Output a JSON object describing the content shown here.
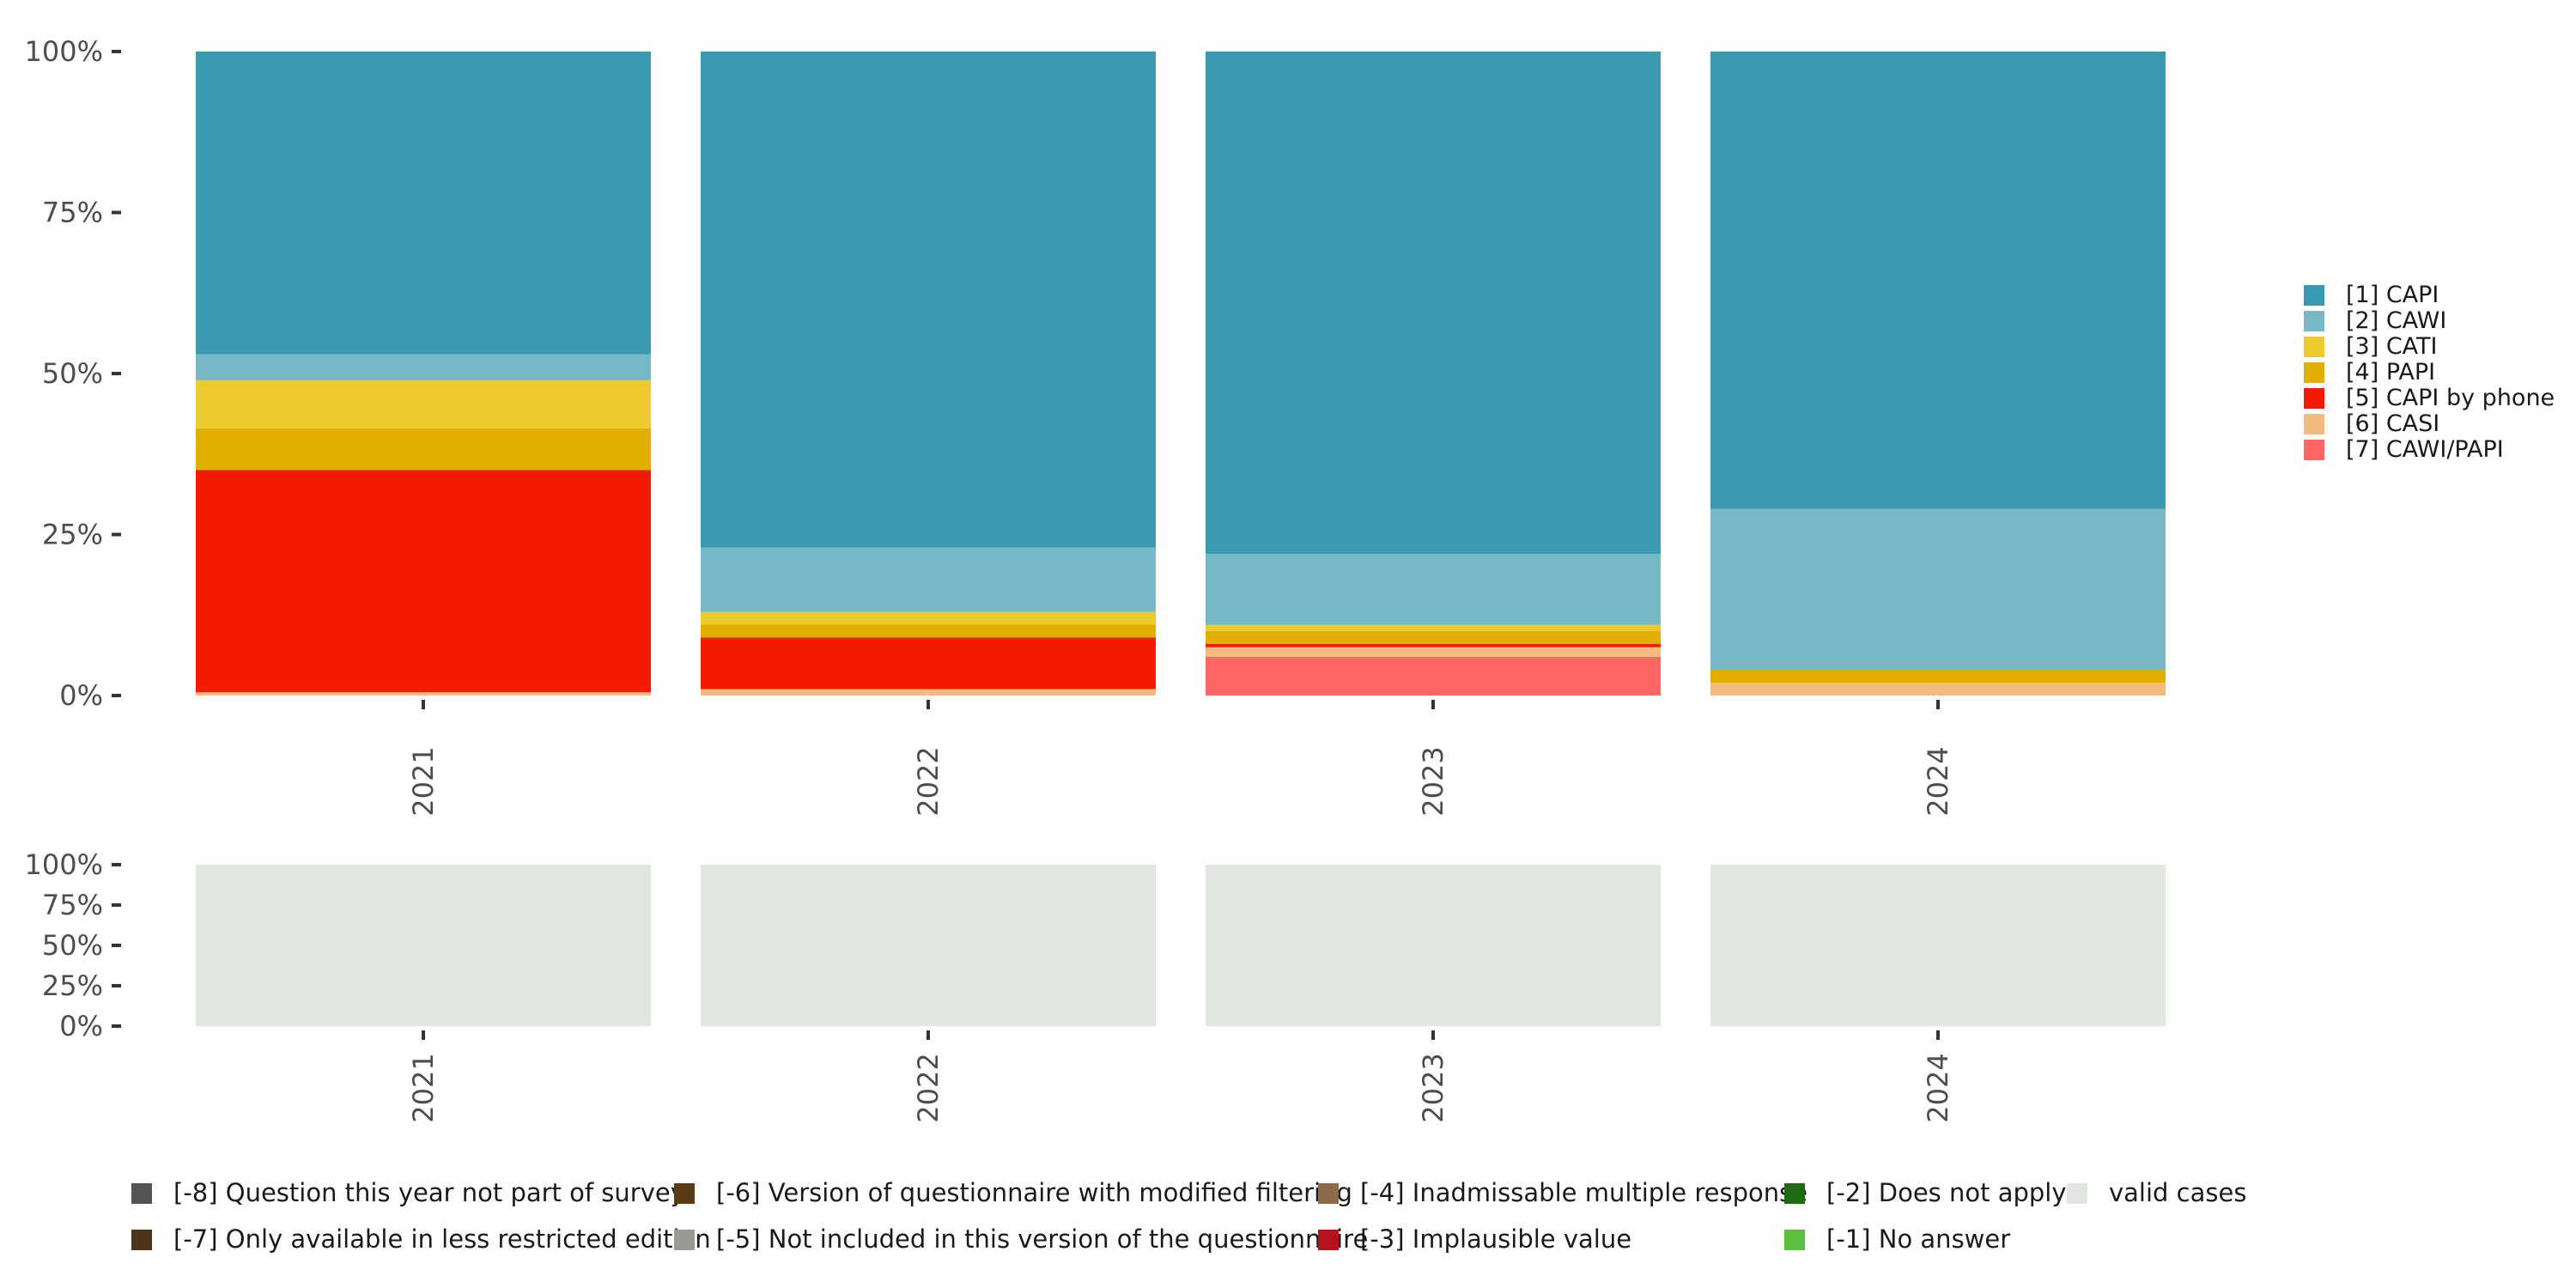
{
  "chart_data": [
    {
      "type": "bar",
      "stacked": "percent",
      "categories": [
        "2021",
        "2022",
        "2023",
        "2024"
      ],
      "ylim": [
        0,
        100
      ],
      "y_ticks": [
        "0%",
        "25%",
        "50%",
        "75%",
        "100%"
      ],
      "legend_position": "right",
      "series": [
        {
          "name": "[7] CAWI/PAPI",
          "color": "#FF6666",
          "values": [
            0,
            0,
            6,
            0
          ]
        },
        {
          "name": "[6] CASI",
          "color": "#F4BB80",
          "values": [
            0.5,
            1,
            1.5,
            2
          ]
        },
        {
          "name": "[5] CAPI by phone",
          "color": "#F21B02",
          "values": [
            34.5,
            8,
            0.5,
            0
          ]
        },
        {
          "name": "[4] PAPI",
          "color": "#E0AF00",
          "values": [
            6.5,
            2,
            2,
            2
          ]
        },
        {
          "name": "[3] CATI",
          "color": "#EDCB2F",
          "values": [
            7.5,
            2,
            1,
            0
          ]
        },
        {
          "name": "[2] CAWI",
          "color": "#78B7C5",
          "values": [
            4,
            10,
            11,
            25
          ]
        },
        {
          "name": "[1] CAPI",
          "color": "#3B9AB2",
          "values": [
            47,
            77,
            78,
            71
          ]
        }
      ]
    },
    {
      "type": "bar",
      "stacked": "percent",
      "categories": [
        "2021",
        "2022",
        "2023",
        "2024"
      ],
      "ylim": [
        0,
        100
      ],
      "y_ticks": [
        "0%",
        "25%",
        "50%",
        "75%",
        "100%"
      ],
      "legend_position": "bottom",
      "series": [
        {
          "name": "[-8] Question this year not part of survey",
          "color": "#545454",
          "values": [
            0,
            0,
            0,
            0
          ]
        },
        {
          "name": "[-7] Only available in less restricted edition",
          "color": "#4D3319",
          "values": [
            0,
            0,
            0,
            0
          ]
        },
        {
          "name": "[-6] Version of questionnaire with modified filtering",
          "color": "#5C3A14",
          "values": [
            0,
            0,
            0,
            0
          ]
        },
        {
          "name": "[-5] Not included in this version of the questionnaire",
          "color": "#9A9A95",
          "values": [
            0,
            0,
            0,
            0
          ]
        },
        {
          "name": "[-4] Inadmissable multiple response",
          "color": "#8F6A4A",
          "values": [
            0,
            0,
            0,
            0
          ]
        },
        {
          "name": "[-3] Implausible value",
          "color": "#B5121B",
          "values": [
            0,
            0,
            0,
            0
          ]
        },
        {
          "name": "[-2] Does not apply",
          "color": "#1E6B12",
          "values": [
            0,
            0,
            0,
            0
          ]
        },
        {
          "name": "[-1] No answer",
          "color": "#5CBF40",
          "values": [
            0,
            0,
            0,
            0
          ]
        },
        {
          "name": "valid cases",
          "color": "#E1E6E1",
          "values": [
            100,
            100,
            100,
            100
          ]
        }
      ]
    }
  ]
}
